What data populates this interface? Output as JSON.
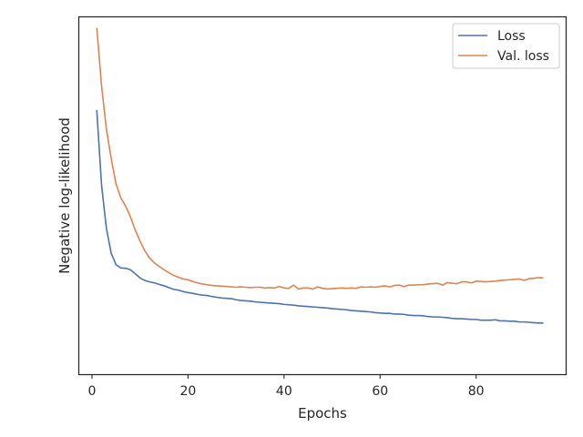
{
  "chart_data": {
    "type": "line",
    "title": "",
    "xlabel": "Epochs",
    "ylabel": "Negative log-likelihood",
    "xlim": [
      -2.65,
      98.65
    ],
    "ylim": [
      0.0,
      1.0
    ],
    "xticks": [
      0,
      20,
      40,
      60,
      80
    ],
    "yticks_shown": false,
    "grid": false,
    "legend_position": "top-right",
    "series": [
      {
        "name": "Loss",
        "color": "#4c72b0",
        "x": [
          1,
          2,
          3,
          4,
          5,
          6,
          7,
          8,
          9,
          10,
          11,
          12,
          13,
          14,
          15,
          16,
          17,
          18,
          19,
          20,
          21,
          22,
          23,
          24,
          25,
          26,
          27,
          28,
          29,
          30,
          31,
          32,
          33,
          34,
          35,
          36,
          37,
          38,
          39,
          40,
          41,
          42,
          43,
          44,
          45,
          46,
          47,
          48,
          49,
          50,
          51,
          52,
          53,
          54,
          55,
          56,
          57,
          58,
          59,
          60,
          61,
          62,
          63,
          64,
          65,
          66,
          67,
          68,
          69,
          70,
          71,
          72,
          73,
          74,
          75,
          76,
          77,
          78,
          79,
          80,
          81,
          82,
          83,
          84,
          85,
          86,
          87,
          88,
          89,
          90,
          91,
          92,
          93,
          94
        ],
        "y": [
          0.738,
          0.528,
          0.408,
          0.338,
          0.306,
          0.297,
          0.296,
          0.292,
          0.281,
          0.269,
          0.262,
          0.258,
          0.255,
          0.251,
          0.247,
          0.242,
          0.237,
          0.235,
          0.231,
          0.228,
          0.226,
          0.223,
          0.221,
          0.22,
          0.217,
          0.215,
          0.213,
          0.212,
          0.211,
          0.208,
          0.206,
          0.205,
          0.204,
          0.202,
          0.201,
          0.2,
          0.199,
          0.198,
          0.197,
          0.195,
          0.194,
          0.193,
          0.191,
          0.19,
          0.189,
          0.188,
          0.187,
          0.186,
          0.185,
          0.183,
          0.182,
          0.181,
          0.18,
          0.178,
          0.177,
          0.176,
          0.175,
          0.174,
          0.172,
          0.171,
          0.17,
          0.17,
          0.168,
          0.168,
          0.167,
          0.165,
          0.164,
          0.164,
          0.163,
          0.161,
          0.16,
          0.16,
          0.159,
          0.158,
          0.156,
          0.155,
          0.155,
          0.154,
          0.153,
          0.153,
          0.151,
          0.151,
          0.151,
          0.152,
          0.149,
          0.149,
          0.148,
          0.148,
          0.146,
          0.146,
          0.145,
          0.144,
          0.143,
          0.143
        ]
      },
      {
        "name": "Val. loss",
        "color": "#dd8452",
        "x": [
          1,
          2,
          3,
          4,
          5,
          6,
          7,
          8,
          9,
          10,
          11,
          12,
          13,
          14,
          15,
          16,
          17,
          18,
          19,
          20,
          21,
          22,
          23,
          24,
          25,
          26,
          27,
          28,
          29,
          30,
          31,
          32,
          33,
          34,
          35,
          36,
          37,
          38,
          39,
          40,
          41,
          42,
          43,
          44,
          45,
          46,
          47,
          48,
          49,
          50,
          51,
          52,
          53,
          54,
          55,
          56,
          57,
          58,
          59,
          60,
          61,
          62,
          63,
          64,
          65,
          66,
          67,
          68,
          69,
          70,
          71,
          72,
          73,
          74,
          75,
          76,
          77,
          78,
          79,
          80,
          81,
          82,
          83,
          84,
          85,
          86,
          87,
          88,
          89,
          90,
          91,
          92,
          93,
          94
        ],
        "y": [
          0.968,
          0.805,
          0.685,
          0.603,
          0.532,
          0.493,
          0.47,
          0.44,
          0.403,
          0.372,
          0.345,
          0.325,
          0.311,
          0.301,
          0.292,
          0.284,
          0.276,
          0.271,
          0.266,
          0.264,
          0.259,
          0.255,
          0.252,
          0.25,
          0.248,
          0.247,
          0.246,
          0.245,
          0.244,
          0.243,
          0.244,
          0.243,
          0.242,
          0.243,
          0.243,
          0.241,
          0.242,
          0.241,
          0.245,
          0.241,
          0.24,
          0.249,
          0.238,
          0.241,
          0.241,
          0.238,
          0.244,
          0.24,
          0.238,
          0.239,
          0.24,
          0.241,
          0.24,
          0.241,
          0.24,
          0.244,
          0.243,
          0.244,
          0.243,
          0.245,
          0.247,
          0.244,
          0.248,
          0.249,
          0.245,
          0.249,
          0.249,
          0.25,
          0.25,
          0.252,
          0.253,
          0.254,
          0.249,
          0.256,
          0.254,
          0.253,
          0.258,
          0.258,
          0.255,
          0.26,
          0.259,
          0.258,
          0.259,
          0.26,
          0.262,
          0.263,
          0.264,
          0.265,
          0.266,
          0.262,
          0.267,
          0.268,
          0.27,
          0.269
        ]
      }
    ]
  }
}
